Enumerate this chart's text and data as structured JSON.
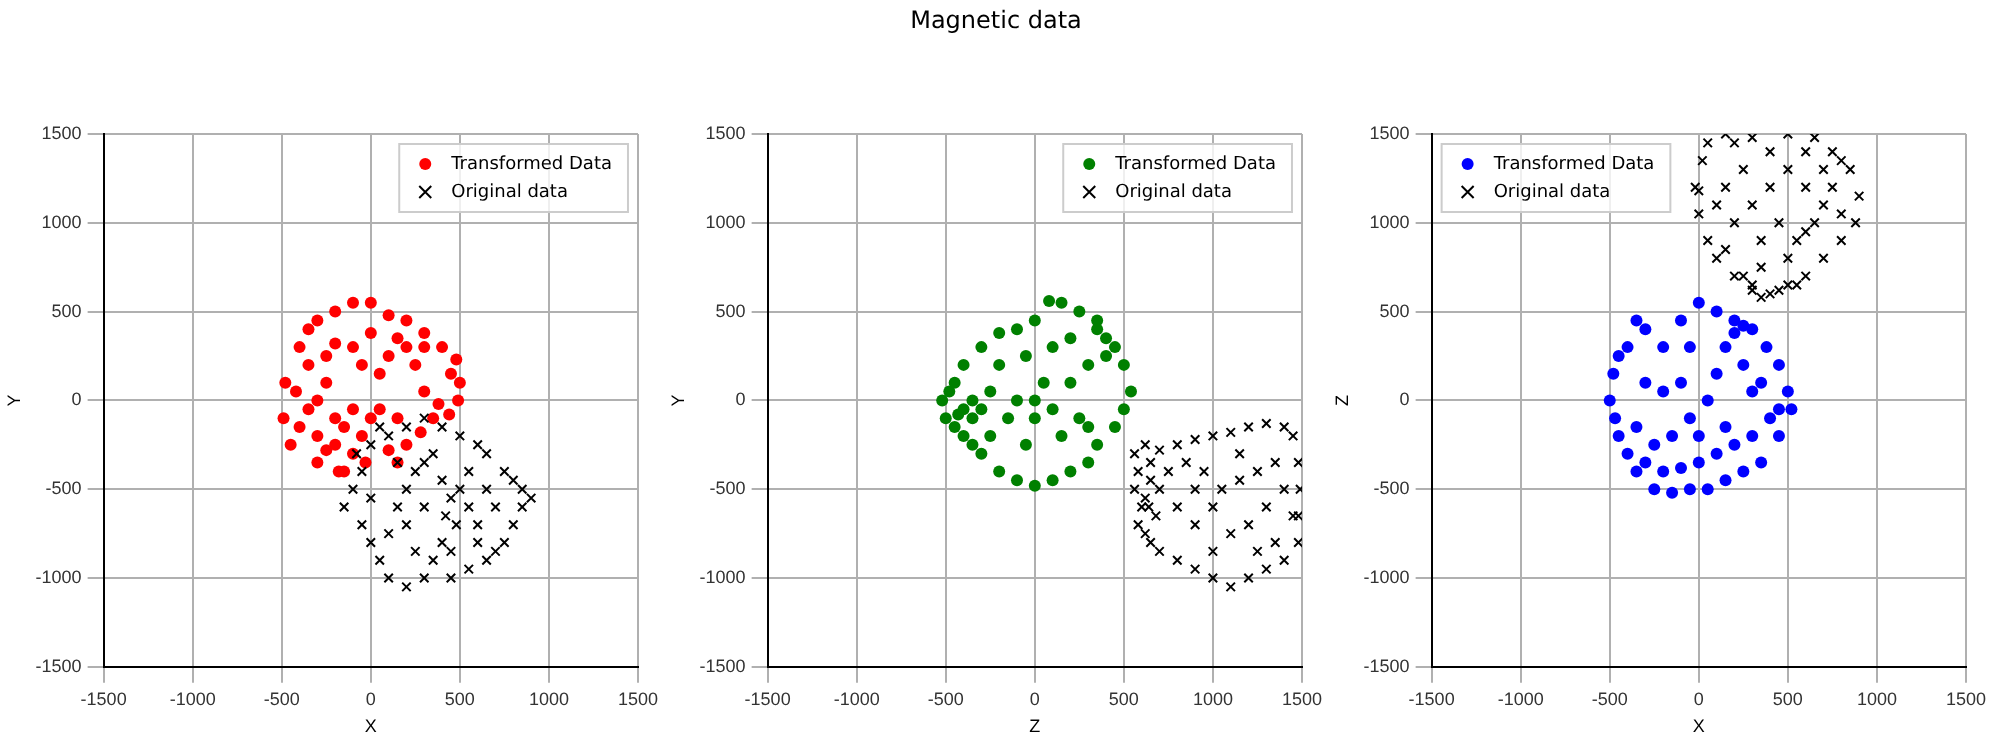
{
  "chart_data": [
    {
      "type": "scatter",
      "xlabel": "X",
      "ylabel": "Y",
      "xlim": [
        -1500,
        1500
      ],
      "ylim": [
        -1500,
        1500
      ],
      "xticks": [
        -1500,
        -1000,
        -500,
        0,
        500,
        1000,
        1500
      ],
      "yticks": [
        -1500,
        -1000,
        -500,
        0,
        500,
        1000,
        1500
      ],
      "grid": true,
      "legend": "top right",
      "series": [
        {
          "name": "Transformed Data",
          "color": "#ff0000",
          "marker": "circle",
          "x": [
            -480,
            -490,
            -450,
            -400,
            -350,
            -300,
            -200,
            -100,
            0,
            100,
            200,
            300,
            400,
            480,
            500,
            490,
            440,
            380,
            300,
            250,
            200,
            150,
            100,
            50,
            -50,
            -100,
            -200,
            -250,
            -300,
            -350,
            -400,
            -300,
            -200,
            -150,
            -100,
            -50,
            0,
            -100,
            -200,
            -300,
            -250,
            -150,
            50,
            100,
            150,
            200,
            280,
            350,
            450,
            -420,
            -350,
            -250,
            0,
            300,
            -30,
            -180,
            150
          ],
          "values": [
            100,
            -100,
            -250,
            300,
            400,
            450,
            500,
            550,
            550,
            480,
            450,
            380,
            300,
            230,
            100,
            0,
            -80,
            -20,
            50,
            200,
            300,
            350,
            250,
            150,
            200,
            300,
            320,
            100,
            0,
            -50,
            -150,
            -200,
            -250,
            -400,
            -300,
            -200,
            -100,
            -50,
            -100,
            -350,
            -280,
            -150,
            -50,
            -280,
            -350,
            -250,
            -180,
            -100,
            150,
            50,
            200,
            250,
            380,
            300,
            -350,
            -400,
            -100
          ]
        },
        {
          "name": "Original data",
          "color": "#000000",
          "marker": "cross",
          "x": [
            -150,
            -100,
            -80,
            0,
            50,
            100,
            200,
            300,
            400,
            500,
            600,
            650,
            750,
            800,
            850,
            900,
            850,
            800,
            750,
            700,
            650,
            550,
            450,
            300,
            200,
            100,
            50,
            0,
            -50,
            100,
            150,
            200,
            250,
            300,
            350,
            400,
            450,
            420,
            480,
            400,
            350,
            250,
            200,
            300,
            500,
            550,
            600,
            650,
            700,
            550,
            150,
            -50,
            450,
            600,
            0
          ],
          "values": [
            -600,
            -500,
            -300,
            -250,
            -150,
            -200,
            -150,
            -100,
            -150,
            -200,
            -250,
            -300,
            -400,
            -450,
            -500,
            -550,
            -600,
            -700,
            -800,
            -850,
            -900,
            -950,
            -1000,
            -1000,
            -1050,
            -1000,
            -900,
            -800,
            -700,
            -750,
            -600,
            -500,
            -400,
            -350,
            -300,
            -450,
            -550,
            -650,
            -700,
            -800,
            -900,
            -850,
            -700,
            -600,
            -500,
            -600,
            -700,
            -500,
            -600,
            -400,
            -350,
            -400,
            -850,
            -800,
            -550
          ]
        }
      ]
    },
    {
      "type": "scatter",
      "title": "Magnetic data",
      "xlabel": "Z",
      "ylabel": "Y",
      "xlim": [
        -1500,
        1500
      ],
      "ylim": [
        -1500,
        1500
      ],
      "xticks": [
        -1500,
        -1000,
        -500,
        0,
        500,
        1000,
        1500
      ],
      "yticks": [
        -1500,
        -1000,
        -500,
        0,
        500,
        1000,
        1500
      ],
      "grid": true,
      "legend": "top right",
      "series": [
        {
          "name": "Transformed Data",
          "color": "#008000",
          "marker": "circle",
          "x": [
            -520,
            -500,
            -480,
            -450,
            -400,
            -350,
            -300,
            -200,
            -100,
            0,
            100,
            200,
            300,
            350,
            450,
            500,
            540,
            500,
            450,
            400,
            350,
            250,
            150,
            80,
            0,
            -100,
            -200,
            -300,
            -400,
            -450,
            -400,
            -350,
            -300,
            -250,
            -150,
            -100,
            0,
            50,
            100,
            200,
            250,
            300,
            350,
            400,
            -50,
            100,
            -200,
            0,
            -350,
            -430,
            150,
            -50,
            300,
            200,
            -250
          ],
          "values": [
            0,
            -100,
            50,
            -150,
            -200,
            -250,
            -300,
            -400,
            -450,
            -480,
            -450,
            -400,
            -350,
            -250,
            -150,
            -50,
            50,
            200,
            300,
            350,
            450,
            500,
            550,
            560,
            450,
            400,
            380,
            300,
            200,
            100,
            -50,
            -100,
            -50,
            50,
            -100,
            0,
            -100,
            100,
            -50,
            100,
            -100,
            200,
            400,
            250,
            250,
            300,
            200,
            0,
            0,
            -80,
            -200,
            -250,
            -150,
            350,
            -200
          ]
        },
        {
          "name": "Original data",
          "color": "#000000",
          "marker": "cross",
          "x": [
            560,
            580,
            560,
            600,
            580,
            620,
            650,
            700,
            800,
            900,
            1000,
            1100,
            1200,
            1300,
            1400,
            1480,
            1480,
            1490,
            1480,
            1450,
            1400,
            1300,
            1200,
            1100,
            1000,
            900,
            800,
            700,
            620,
            650,
            620,
            680,
            700,
            750,
            850,
            950,
            1050,
            1150,
            1250,
            1350,
            1400,
            1300,
            1200,
            1100,
            1000,
            900,
            800,
            1000,
            1150,
            1350,
            1250,
            1450,
            650,
            640,
            900
          ],
          "values": [
            -300,
            -400,
            -500,
            -600,
            -700,
            -750,
            -800,
            -850,
            -900,
            -950,
            -1000,
            -1050,
            -1000,
            -950,
            -900,
            -800,
            -650,
            -500,
            -350,
            -200,
            -150,
            -130,
            -150,
            -180,
            -200,
            -220,
            -250,
            -280,
            -250,
            -450,
            -550,
            -650,
            -500,
            -400,
            -350,
            -400,
            -500,
            -450,
            -400,
            -350,
            -500,
            -600,
            -700,
            -750,
            -850,
            -700,
            -600,
            -600,
            -300,
            -800,
            -850,
            -650,
            -350,
            -600,
            -500
          ]
        }
      ]
    },
    {
      "type": "scatter",
      "xlabel": "X",
      "ylabel": "Z",
      "xlim": [
        -1500,
        1500
      ],
      "ylim": [
        -1500,
        1500
      ],
      "xticks": [
        -1500,
        -1000,
        -500,
        0,
        500,
        1000,
        1500
      ],
      "yticks": [
        -1500,
        -1000,
        -500,
        0,
        500,
        1000,
        1500
      ],
      "grid": true,
      "legend": "top left",
      "series": [
        {
          "name": "Transformed Data",
          "color": "#0000ff",
          "marker": "circle",
          "x": [
            -500,
            -480,
            -450,
            -400,
            -350,
            -300,
            -200,
            -100,
            0,
            100,
            200,
            300,
            380,
            450,
            500,
            520,
            450,
            350,
            250,
            150,
            50,
            -50,
            -150,
            -250,
            -350,
            -400,
            -450,
            -470,
            -300,
            -200,
            -100,
            0,
            100,
            200,
            300,
            400,
            350,
            250,
            150,
            250,
            200,
            -100,
            -200,
            -300,
            -50,
            50,
            150,
            -150,
            -250,
            100,
            -350,
            300,
            -50,
            450,
            0
          ],
          "values": [
            0,
            150,
            250,
            300,
            450,
            400,
            300,
            450,
            550,
            500,
            450,
            400,
            300,
            200,
            50,
            -50,
            -200,
            -350,
            -400,
            -450,
            -500,
            -500,
            -520,
            -500,
            -400,
            -300,
            -200,
            -100,
            -350,
            -400,
            -380,
            -350,
            -300,
            -250,
            -200,
            -100,
            100,
            200,
            300,
            420,
            380,
            100,
            50,
            100,
            -100,
            0,
            -150,
            -200,
            -250,
            150,
            -150,
            50,
            300,
            -50,
            -200
          ]
        },
        {
          "name": "Original data",
          "color": "#000000",
          "marker": "cross",
          "x": [
            0,
            -20,
            20,
            50,
            150,
            300,
            500,
            650,
            750,
            850,
            900,
            880,
            800,
            700,
            600,
            500,
            400,
            350,
            300,
            200,
            100,
            50,
            300,
            450,
            550,
            250,
            150,
            200,
            300,
            400,
            500,
            600,
            700,
            650,
            550,
            450,
            350,
            250,
            150,
            100,
            600,
            750,
            800,
            400,
            200,
            700,
            500,
            350,
            600,
            0,
            800
          ],
          "values": [
            1050,
            1200,
            1350,
            1450,
            1500,
            1480,
            1500,
            1480,
            1400,
            1300,
            1150,
            1000,
            900,
            800,
            700,
            650,
            600,
            580,
            620,
            700,
            800,
            900,
            650,
            620,
            650,
            700,
            850,
            1000,
            1100,
            1200,
            1300,
            1200,
            1100,
            1000,
            900,
            1000,
            900,
            1300,
            1200,
            1100,
            1400,
            1200,
            1050,
            1400,
            1450,
            1300,
            800,
            750,
            950,
            1180,
            1350
          ]
        }
      ]
    }
  ]
}
